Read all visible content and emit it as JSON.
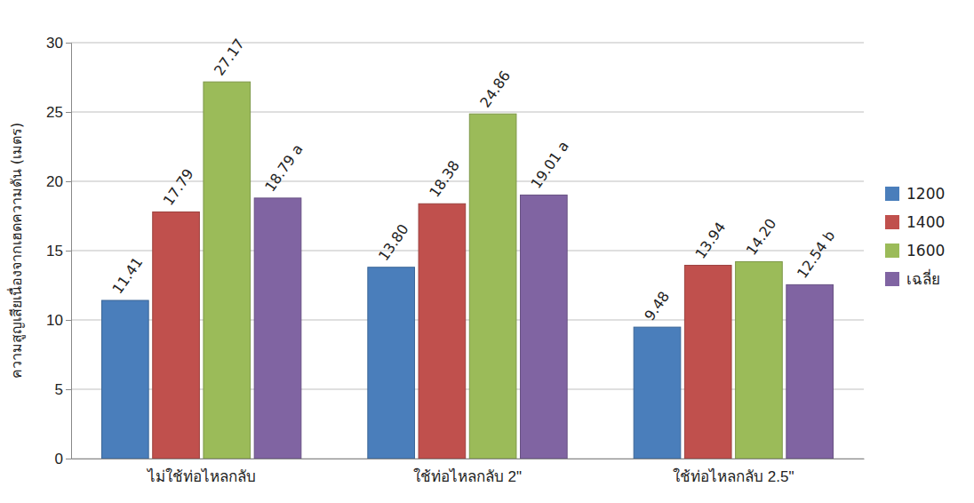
{
  "chart_data": {
    "type": "bar",
    "y_label": "ความสูญเสียเนื่องจากเฮดความดัน (เมตร)",
    "categories": [
      "ไม่ใช้ท่อไหลกลับ",
      "ใช้ท่อไหลกลับ 2\"",
      "ใช้ท่อไหลกลับ 2.5\""
    ],
    "series": [
      {
        "name": "1200",
        "color": "#4a7ebb",
        "values": [
          11.41,
          13.8,
          9.48
        ],
        "value_labels": [
          "11.41",
          "13.80",
          "9.48"
        ]
      },
      {
        "name": "1400",
        "color": "#c0504d",
        "values": [
          17.79,
          18.38,
          13.94
        ],
        "value_labels": [
          "17.79",
          "18.38",
          "13.94"
        ]
      },
      {
        "name": "1600",
        "color": "#9bbb59",
        "values": [
          27.17,
          24.86,
          14.2
        ],
        "value_labels": [
          "27.17",
          "24.86",
          "14.20"
        ]
      },
      {
        "name": "เฉลี่ย",
        "color": "#8064a2",
        "values": [
          18.79,
          19.01,
          12.54
        ],
        "value_labels": [
          "18.79 a",
          "19.01 a",
          "12.54 b"
        ]
      }
    ],
    "ylim": [
      0,
      30
    ],
    "yticks": [
      0,
      5,
      10,
      15,
      20,
      25,
      30
    ],
    "grid": true,
    "legend": "right",
    "data_labels": true
  }
}
